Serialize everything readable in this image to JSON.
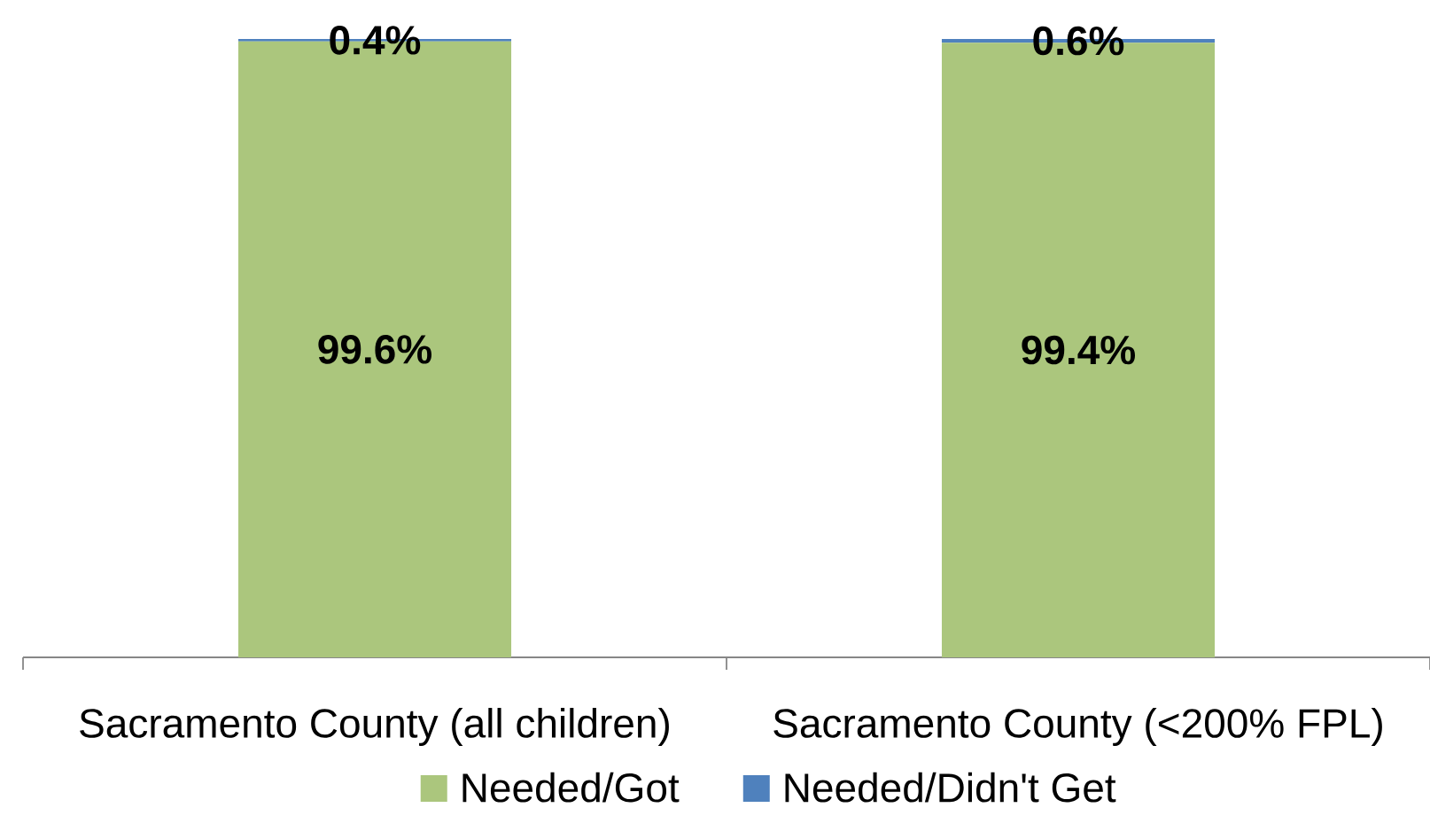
{
  "chart_data": {
    "type": "bar",
    "stacked": true,
    "legend": "bottom",
    "categories": [
      "Sacramento County (all children)",
      "Sacramento County (<200% FPL)"
    ],
    "series": [
      {
        "name": "Needed/Got",
        "color": "#abc67d",
        "values": [
          99.6,
          99.4
        ],
        "value_labels": [
          "99.6%",
          "99.4%"
        ]
      },
      {
        "name": "Needed/Didn't Get",
        "color": "#4f81bd",
        "values": [
          0.4,
          0.6
        ],
        "value_labels": [
          "0.4%",
          "0.6%"
        ]
      }
    ]
  }
}
